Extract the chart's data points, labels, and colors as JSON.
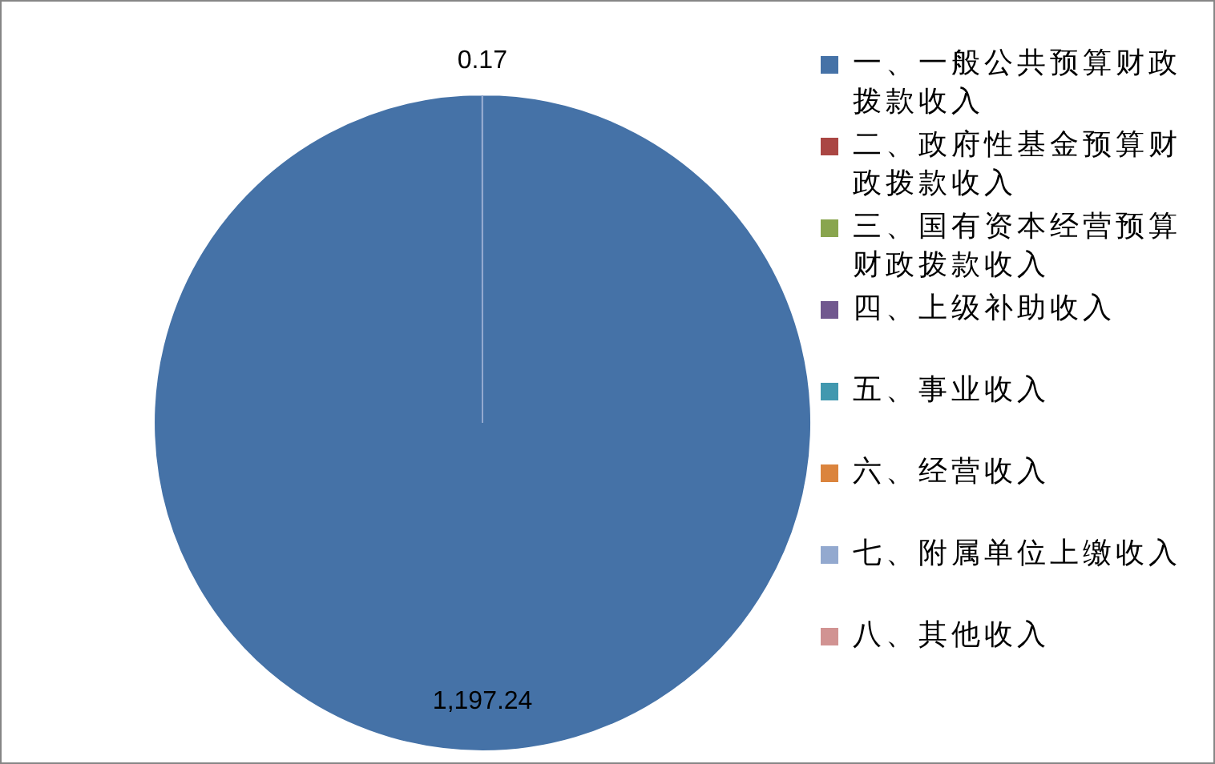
{
  "chart_data": {
    "type": "pie",
    "categories": [
      "一、一般公共预算财政拨款收入",
      "二、政府性基金预算财政拨款收入",
      "三、国有资本经营预算财政拨款收入",
      "四、上级补助收入",
      "五、事业收入",
      "六、经营收入",
      "七、附属单位上缴收入",
      "八、其他收入"
    ],
    "values": [
      1197.24,
      0,
      0,
      0,
      0,
      0,
      0.17,
      0
    ],
    "colors": [
      "#4572a7",
      "#aa4643",
      "#89a54e",
      "#71588f",
      "#4198af",
      "#db843d",
      "#93a9cf",
      "#d19392"
    ],
    "value_labels": [
      "1,197.24",
      null,
      null,
      null,
      null,
      null,
      "0.17",
      null
    ],
    "legend": "right"
  }
}
